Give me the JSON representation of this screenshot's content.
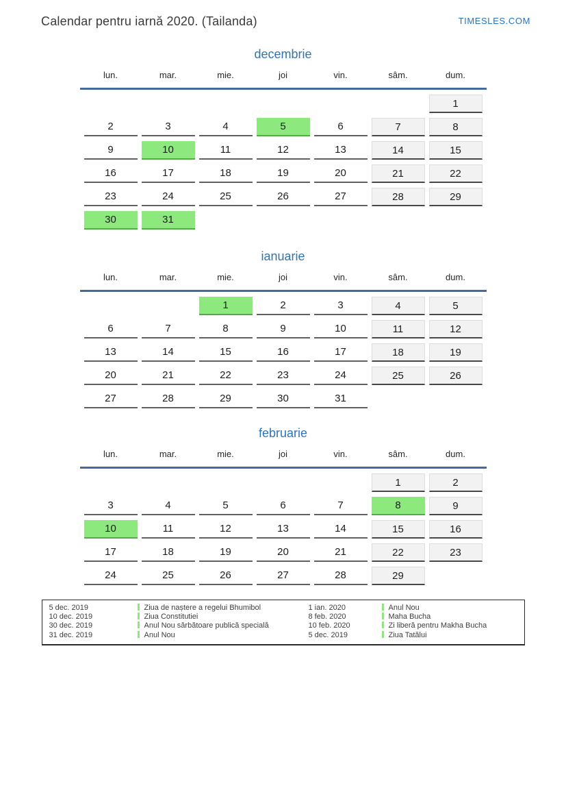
{
  "header": {
    "title": "Calendar pentru iarnă 2020. (Tailanda)",
    "site": "TIMESLES.COM"
  },
  "weekdays": [
    "lun.",
    "mar.",
    "mie.",
    "joi",
    "vin.",
    "sâm.",
    "dum."
  ],
  "colors": {
    "holiday_green": "#8de97e",
    "weekend_gray": "#f2f2f2",
    "month_title_blue": "#2e74b5",
    "header_line_blue": "#426a9a",
    "link_blue": "#2273c4"
  },
  "months": [
    {
      "name": "decembrie",
      "rows": [
        [
          null,
          null,
          null,
          null,
          null,
          null,
          {
            "d": 1,
            "t": "weekend"
          }
        ],
        [
          {
            "d": 2,
            "t": "day"
          },
          {
            "d": 3,
            "t": "day"
          },
          {
            "d": 4,
            "t": "day"
          },
          {
            "d": 5,
            "t": "holiday"
          },
          {
            "d": 6,
            "t": "day"
          },
          {
            "d": 7,
            "t": "weekend"
          },
          {
            "d": 8,
            "t": "weekend"
          }
        ],
        [
          {
            "d": 9,
            "t": "day"
          },
          {
            "d": 10,
            "t": "holiday"
          },
          {
            "d": 11,
            "t": "day"
          },
          {
            "d": 12,
            "t": "day"
          },
          {
            "d": 13,
            "t": "day"
          },
          {
            "d": 14,
            "t": "weekend"
          },
          {
            "d": 15,
            "t": "weekend"
          }
        ],
        [
          {
            "d": 16,
            "t": "day"
          },
          {
            "d": 17,
            "t": "day"
          },
          {
            "d": 18,
            "t": "day"
          },
          {
            "d": 19,
            "t": "day"
          },
          {
            "d": 20,
            "t": "day"
          },
          {
            "d": 21,
            "t": "weekend"
          },
          {
            "d": 22,
            "t": "weekend"
          }
        ],
        [
          {
            "d": 23,
            "t": "day"
          },
          {
            "d": 24,
            "t": "day"
          },
          {
            "d": 25,
            "t": "day"
          },
          {
            "d": 26,
            "t": "day"
          },
          {
            "d": 27,
            "t": "day"
          },
          {
            "d": 28,
            "t": "weekend"
          },
          {
            "d": 29,
            "t": "weekend"
          }
        ],
        [
          {
            "d": 30,
            "t": "holiday"
          },
          {
            "d": 31,
            "t": "holiday"
          },
          null,
          null,
          null,
          null,
          null
        ]
      ]
    },
    {
      "name": "ianuarie",
      "rows": [
        [
          null,
          null,
          {
            "d": 1,
            "t": "holiday"
          },
          {
            "d": 2,
            "t": "day"
          },
          {
            "d": 3,
            "t": "day"
          },
          {
            "d": 4,
            "t": "weekend"
          },
          {
            "d": 5,
            "t": "weekend"
          }
        ],
        [
          {
            "d": 6,
            "t": "day"
          },
          {
            "d": 7,
            "t": "day"
          },
          {
            "d": 8,
            "t": "day"
          },
          {
            "d": 9,
            "t": "day"
          },
          {
            "d": 10,
            "t": "day"
          },
          {
            "d": 11,
            "t": "weekend"
          },
          {
            "d": 12,
            "t": "weekend"
          }
        ],
        [
          {
            "d": 13,
            "t": "day"
          },
          {
            "d": 14,
            "t": "day"
          },
          {
            "d": 15,
            "t": "day"
          },
          {
            "d": 16,
            "t": "day"
          },
          {
            "d": 17,
            "t": "day"
          },
          {
            "d": 18,
            "t": "weekend"
          },
          {
            "d": 19,
            "t": "weekend"
          }
        ],
        [
          {
            "d": 20,
            "t": "day"
          },
          {
            "d": 21,
            "t": "day"
          },
          {
            "d": 22,
            "t": "day"
          },
          {
            "d": 23,
            "t": "day"
          },
          {
            "d": 24,
            "t": "day"
          },
          {
            "d": 25,
            "t": "weekend"
          },
          {
            "d": 26,
            "t": "weekend"
          }
        ],
        [
          {
            "d": 27,
            "t": "day"
          },
          {
            "d": 28,
            "t": "day"
          },
          {
            "d": 29,
            "t": "day"
          },
          {
            "d": 30,
            "t": "day"
          },
          {
            "d": 31,
            "t": "day"
          },
          null,
          null
        ]
      ]
    },
    {
      "name": "februarie",
      "rows": [
        [
          null,
          null,
          null,
          null,
          null,
          {
            "d": 1,
            "t": "weekend"
          },
          {
            "d": 2,
            "t": "weekend"
          }
        ],
        [
          {
            "d": 3,
            "t": "day"
          },
          {
            "d": 4,
            "t": "day"
          },
          {
            "d": 5,
            "t": "day"
          },
          {
            "d": 6,
            "t": "day"
          },
          {
            "d": 7,
            "t": "day"
          },
          {
            "d": 8,
            "t": "holiday"
          },
          {
            "d": 9,
            "t": "weekend"
          }
        ],
        [
          {
            "d": 10,
            "t": "holiday"
          },
          {
            "d": 11,
            "t": "day"
          },
          {
            "d": 12,
            "t": "day"
          },
          {
            "d": 13,
            "t": "day"
          },
          {
            "d": 14,
            "t": "day"
          },
          {
            "d": 15,
            "t": "weekend"
          },
          {
            "d": 16,
            "t": "weekend"
          }
        ],
        [
          {
            "d": 17,
            "t": "day"
          },
          {
            "d": 18,
            "t": "day"
          },
          {
            "d": 19,
            "t": "day"
          },
          {
            "d": 20,
            "t": "day"
          },
          {
            "d": 21,
            "t": "day"
          },
          {
            "d": 22,
            "t": "weekend"
          },
          {
            "d": 23,
            "t": "weekend"
          }
        ],
        [
          {
            "d": 24,
            "t": "day"
          },
          {
            "d": 25,
            "t": "day"
          },
          {
            "d": 26,
            "t": "day"
          },
          {
            "d": 27,
            "t": "day"
          },
          {
            "d": 28,
            "t": "day"
          },
          {
            "d": 29,
            "t": "weekend"
          },
          null
        ]
      ]
    }
  ],
  "legend": {
    "columns": [
      {
        "items": [
          {
            "date": "5 dec. 2019",
            "label": "Ziua de naștere a regelui Bhumibol"
          },
          {
            "date": "10 dec. 2019",
            "label": "Ziua Constitutiei"
          },
          {
            "date": "30 dec. 2019",
            "label": "Anul Nou sărbătoare publică specială"
          },
          {
            "date": "31 dec. 2019",
            "label": "Anul Nou"
          }
        ]
      },
      {
        "items": [
          {
            "date": "1 ian. 2020",
            "label": "Anul Nou"
          },
          {
            "date": "8 feb. 2020",
            "label": "Maha Bucha"
          },
          {
            "date": "10 feb. 2020",
            "label": "Zi liberă pentru Makha Bucha"
          },
          {
            "date": "5 dec. 2019",
            "label": "Ziua Tatălui"
          }
        ]
      }
    ]
  }
}
